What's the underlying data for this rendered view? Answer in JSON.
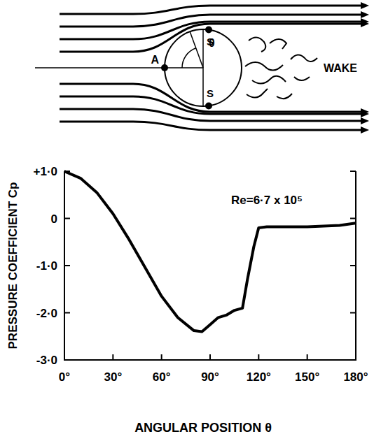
{
  "chart_data": {
    "type": "line",
    "x_label": "ANGULAR POSITION θ",
    "y_label": "PRESSURE COEFFICIENT Cp",
    "annotation": "Re=6·7 x 10⁵",
    "x": [
      0,
      10,
      20,
      30,
      40,
      50,
      60,
      70,
      80,
      85,
      90,
      95,
      100,
      105,
      110,
      113,
      117,
      120,
      125,
      150,
      170,
      180
    ],
    "series": [
      {
        "name": "Cp",
        "color": "#000000",
        "values": [
          1.0,
          0.85,
          0.55,
          0.1,
          -0.45,
          -1.05,
          -1.65,
          -2.1,
          -2.38,
          -2.4,
          -2.25,
          -2.1,
          -2.05,
          -1.95,
          -1.9,
          -1.3,
          -0.6,
          -0.2,
          -0.18,
          -0.18,
          -0.15,
          -0.1
        ]
      }
    ],
    "xlim": [
      0,
      180
    ],
    "xticks": [
      {
        "value": 0,
        "label": "0°"
      },
      {
        "value": 30,
        "label": "30°"
      },
      {
        "value": 60,
        "label": "60°"
      },
      {
        "value": 90,
        "label": "90°"
      },
      {
        "value": 120,
        "label": "120°"
      },
      {
        "value": 150,
        "label": "150°"
      },
      {
        "value": 180,
        "label": "180°"
      }
    ],
    "ylim": [
      -3,
      1
    ],
    "yticks": [
      {
        "value": 1,
        "label": "+1·0"
      },
      0,
      {
        "value": -1,
        "label": "-1·0"
      },
      {
        "value": -2,
        "label": "-2·0"
      },
      {
        "value": -3,
        "label": "-3·0"
      }
    ],
    "grid": false
  },
  "diagram": {
    "labels": {
      "point_a": "A",
      "separation_top": "S",
      "separation_bottom": "S",
      "angle": "θ",
      "wake": "WAKE"
    }
  }
}
